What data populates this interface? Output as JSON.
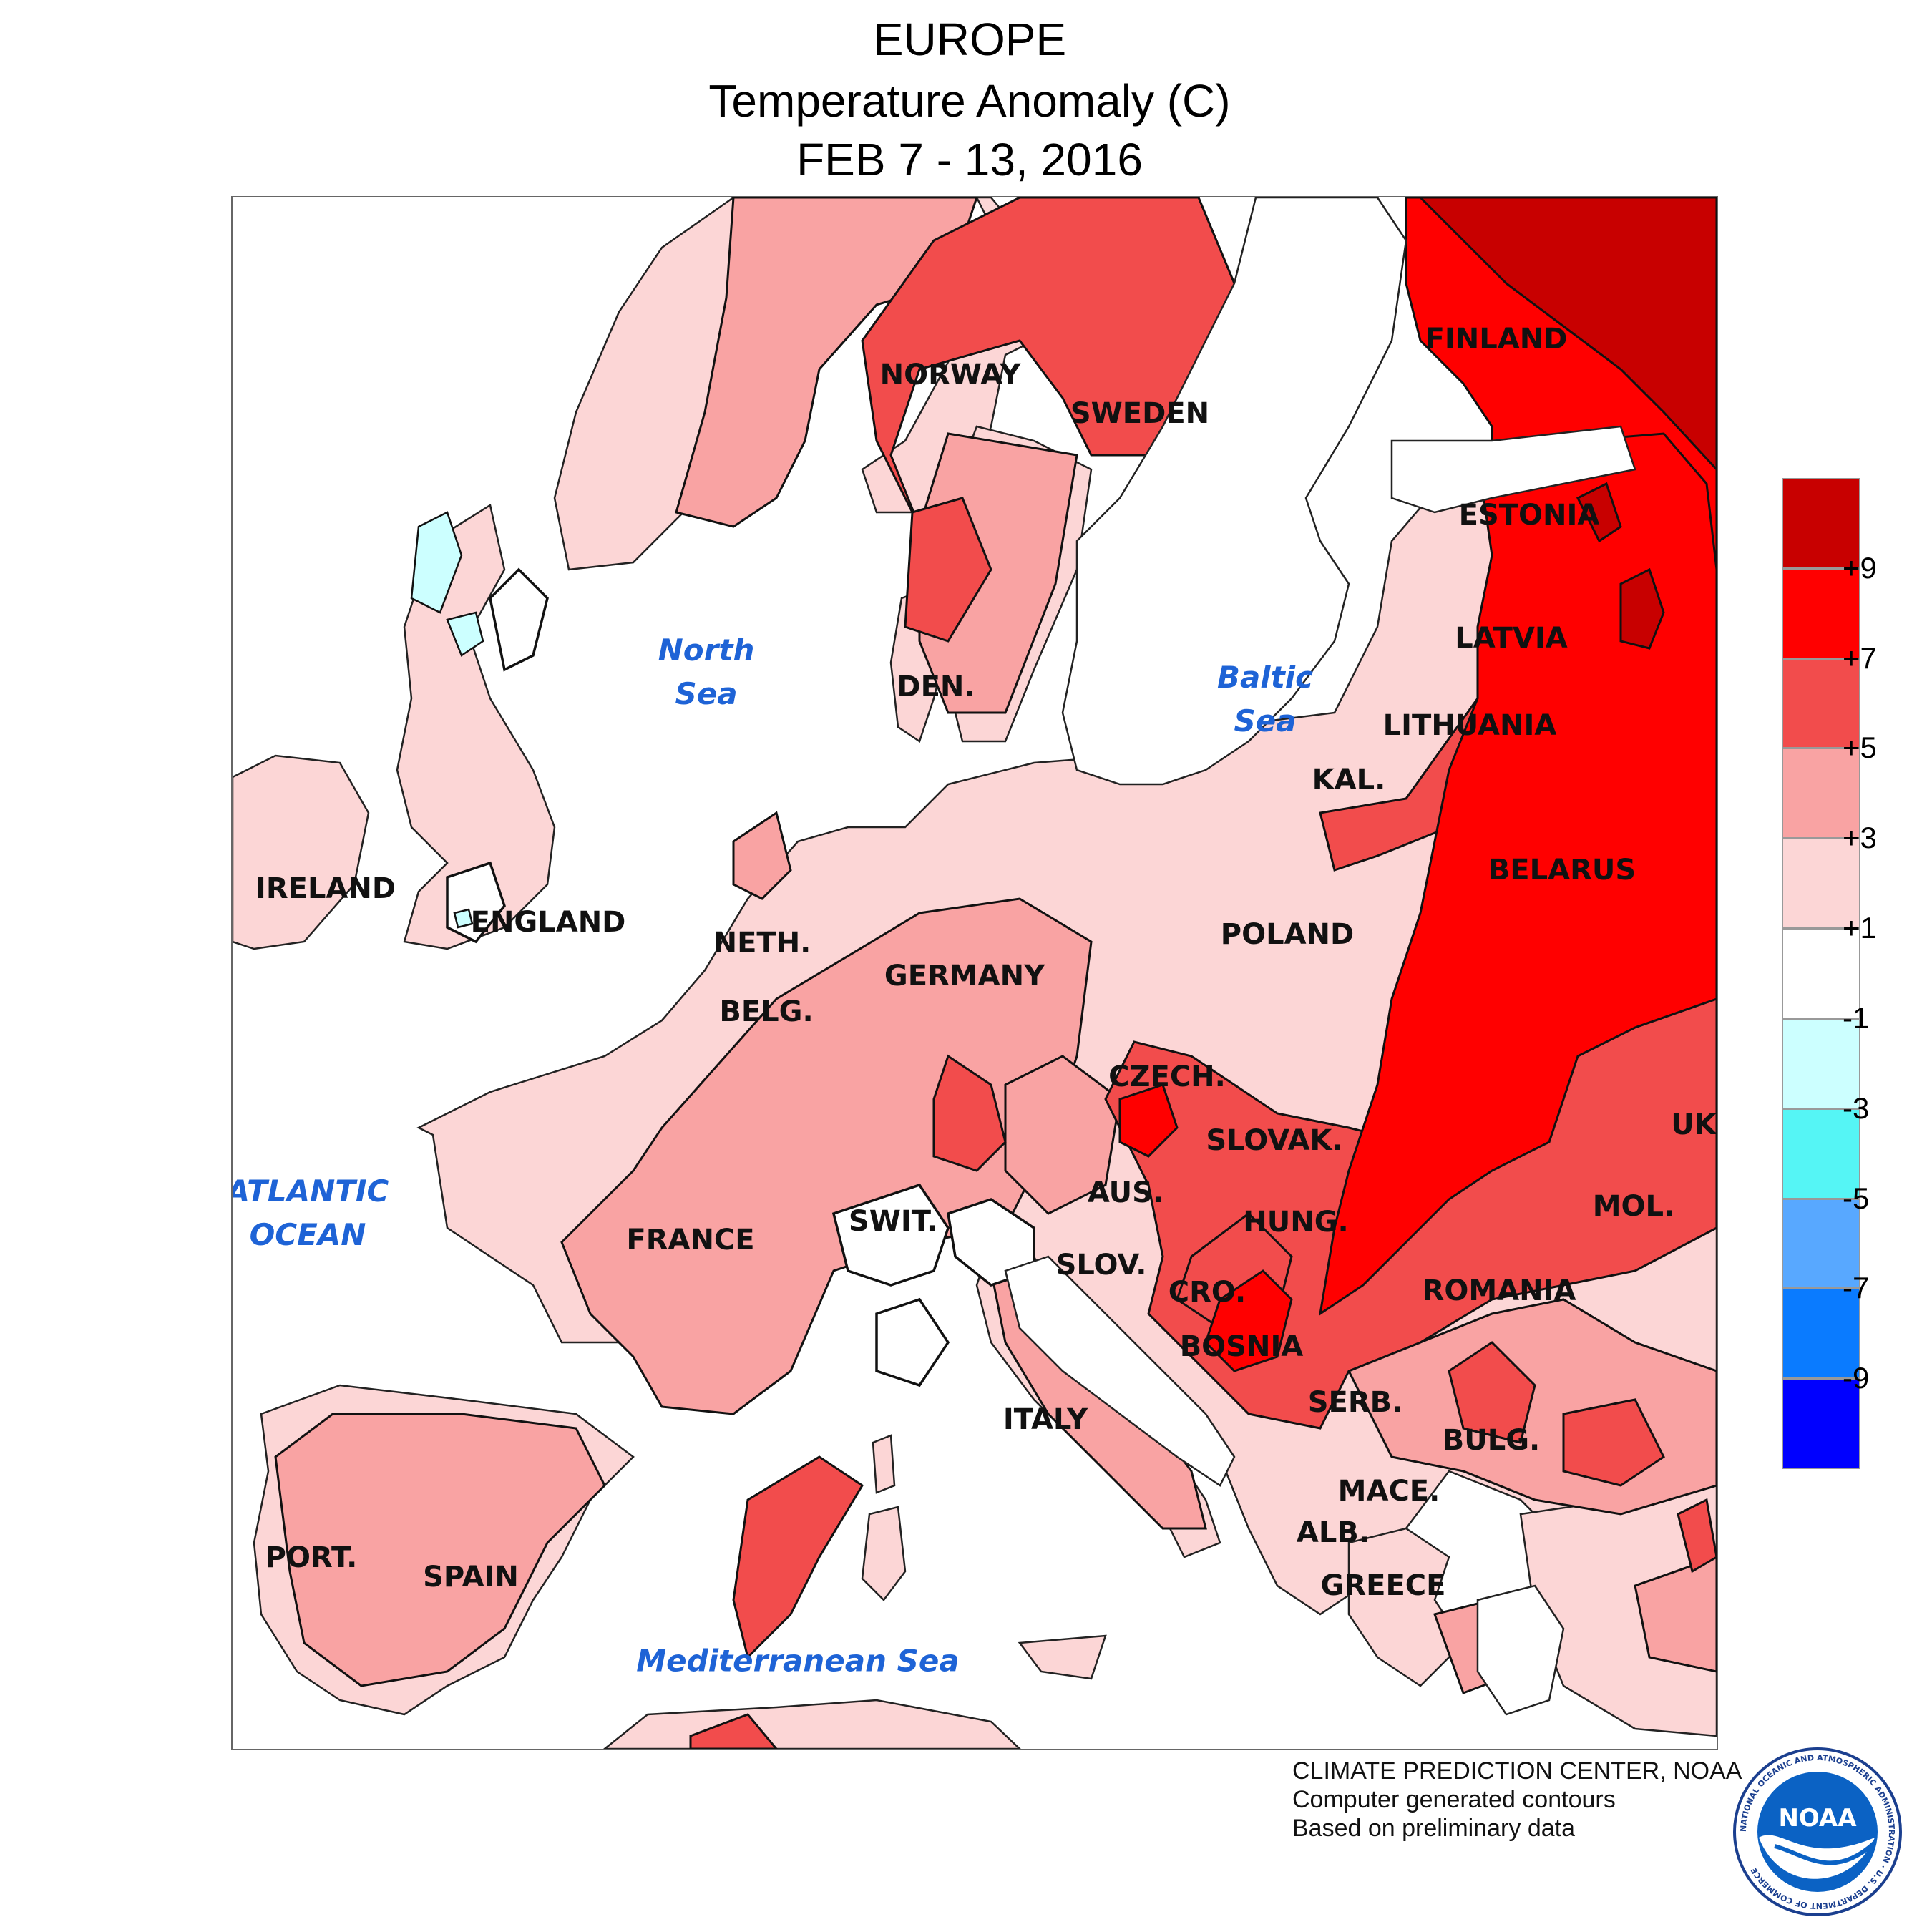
{
  "title": {
    "line1": "EUROPE",
    "line2": "Temperature Anomaly (C)",
    "line3": "FEB 7 - 13, 2016"
  },
  "countries": {
    "finland": "FINLAND",
    "norway": "NORWAY",
    "sweden": "SWEDEN",
    "estonia": "ESTONIA",
    "latvia": "LATVIA",
    "lithuania": "LITHUANIA",
    "kaliningrad": "KAL.",
    "belarus": "BELARUS",
    "denmark": "DEN.",
    "ireland": "IRELAND",
    "england": "ENGLAND",
    "netherlands": "NETH.",
    "belgium": "BELG.",
    "germany": "GERMANY",
    "poland": "POLAND",
    "czech": "CZECH.",
    "slovakia": "SLOVAK.",
    "ukraine": "UK",
    "moldova": "MOL.",
    "austria": "AUS.",
    "hungary": "HUNG.",
    "switzerland": "SWIT.",
    "france": "FRANCE",
    "slovenia": "SLOV.",
    "croatia": "CRO.",
    "romania": "ROMANIA",
    "bosnia": "BOSNIA",
    "serbia": "SERB.",
    "bulgaria": "BULG.",
    "italy": "ITALY",
    "macedonia": "MACE.",
    "albania": "ALB.",
    "greece": "GREECE",
    "portugal": "PORT.",
    "spain": "SPAIN"
  },
  "seas": {
    "north_sea": [
      "North",
      "Sea"
    ],
    "baltic_sea": [
      "Baltic",
      "Sea"
    ],
    "atlantic": [
      "ATLANTIC",
      "OCEAN"
    ],
    "mediterranean": "Mediterranean Sea"
  },
  "legend": {
    "bins": [
      {
        "color": "#c80000"
      },
      {
        "color": "#ff0000"
      },
      {
        "color": "#f24c4c"
      },
      {
        "color": "#f9a3a3"
      },
      {
        "color": "#fcd6d6"
      },
      {
        "color": "#ffffff"
      },
      {
        "color": "#ccffff"
      },
      {
        "color": "#55f5f5"
      },
      {
        "color": "#58a8ff"
      },
      {
        "color": "#0a7bff"
      },
      {
        "color": "#0000ff"
      }
    ],
    "tick_labels": [
      "+9",
      "+7",
      "+5",
      "+3",
      "+1",
      "-1",
      "-3",
      "-5",
      "-7",
      "-9"
    ]
  },
  "credits": {
    "line1": "CLIMATE PREDICTION CENTER, NOAA",
    "line2": "Computer generated contours",
    "line3": "Based on preliminary data"
  },
  "logo": {
    "text": "NOAA",
    "ring_text": "NATIONAL OCEANIC AND ATMOSPHERIC ADMINISTRATION · U.S. DEPARTMENT OF COMMERCE"
  }
}
